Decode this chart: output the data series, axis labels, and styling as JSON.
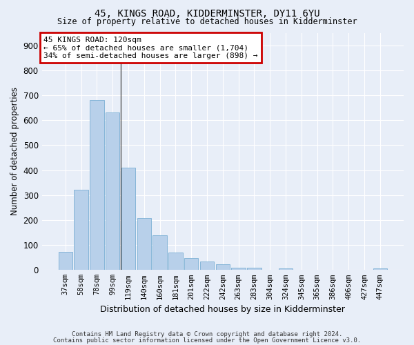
{
  "title1": "45, KINGS ROAD, KIDDERMINSTER, DY11 6YU",
  "title2": "Size of property relative to detached houses in Kidderminster",
  "xlabel": "Distribution of detached houses by size in Kidderminster",
  "ylabel": "Number of detached properties",
  "categories": [
    "37sqm",
    "58sqm",
    "78sqm",
    "99sqm",
    "119sqm",
    "140sqm",
    "160sqm",
    "181sqm",
    "201sqm",
    "222sqm",
    "242sqm",
    "263sqm",
    "283sqm",
    "304sqm",
    "324sqm",
    "345sqm",
    "365sqm",
    "386sqm",
    "406sqm",
    "427sqm",
    "447sqm"
  ],
  "values": [
    72,
    320,
    680,
    630,
    410,
    207,
    140,
    70,
    47,
    35,
    22,
    10,
    8,
    0,
    6,
    0,
    0,
    0,
    0,
    0,
    6
  ],
  "bar_color": "#b8d0ea",
  "bar_edge_color": "#7aafd4",
  "vline_index": 3.5,
  "vline_color": "#555555",
  "annotation_line1": "45 KINGS ROAD: 120sqm",
  "annotation_line2": "← 65% of detached houses are smaller (1,704)",
  "annotation_line3": "34% of semi-detached houses are larger (898) →",
  "annotation_box_color": "white",
  "annotation_box_edge_color": "#cc0000",
  "ylim": [
    0,
    950
  ],
  "yticks": [
    0,
    100,
    200,
    300,
    400,
    500,
    600,
    700,
    800,
    900
  ],
  "footer1": "Contains HM Land Registry data © Crown copyright and database right 2024.",
  "footer2": "Contains public sector information licensed under the Open Government Licence v3.0.",
  "bg_color": "#e8eef8",
  "plot_bg_color": "#e8eef8",
  "grid_color": "white"
}
